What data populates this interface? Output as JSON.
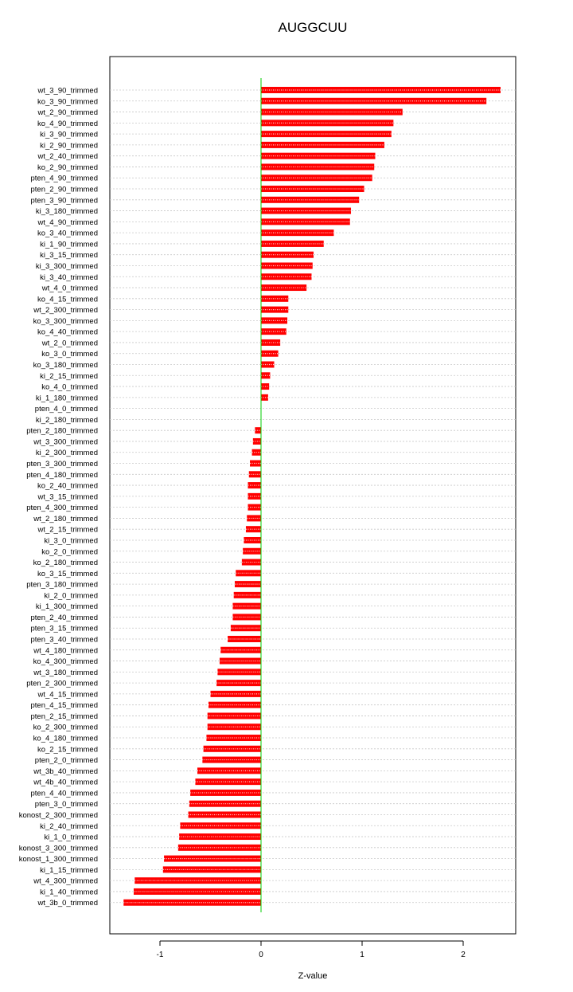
{
  "chart_data": {
    "type": "bar",
    "orientation": "horizontal",
    "title": "AUGGCUU",
    "xlabel": "Z-value",
    "ylabel": "",
    "xlim": [
      -1.5,
      2.5
    ],
    "xticks": [
      -1,
      0,
      1,
      2
    ],
    "grid": "horizontal dotted",
    "legend": "none",
    "bar_color": "#ff0000",
    "zero_line_color": "#00cc00",
    "categories": [
      "wt_3_90_trimmed",
      "ko_3_90_trimmed",
      "wt_2_90_trimmed",
      "ko_4_90_trimmed",
      "ki_3_90_trimmed",
      "ki_2_90_trimmed",
      "wt_2_40_trimmed",
      "ko_2_90_trimmed",
      "pten_4_90_trimmed",
      "pten_2_90_trimmed",
      "pten_3_90_trimmed",
      "ki_3_180_trimmed",
      "wt_4_90_trimmed",
      "ko_3_40_trimmed",
      "ki_1_90_trimmed",
      "ki_3_15_trimmed",
      "ki_3_300_trimmed",
      "ki_3_40_trimmed",
      "wt_4_0_trimmed",
      "ko_4_15_trimmed",
      "wt_2_300_trimmed",
      "ko_3_300_trimmed",
      "ko_4_40_trimmed",
      "wt_2_0_trimmed",
      "ko_3_0_trimmed",
      "ko_3_180_trimmed",
      "ki_2_15_trimmed",
      "ko_4_0_trimmed",
      "ki_1_180_trimmed",
      "pten_4_0_trimmed",
      "ki_2_180_trimmed",
      "pten_2_180_trimmed",
      "wt_3_300_trimmed",
      "ki_2_300_trimmed",
      "pten_3_300_trimmed",
      "pten_4_180_trimmed",
      "ko_2_40_trimmed",
      "wt_3_15_trimmed",
      "pten_4_300_trimmed",
      "wt_2_180_trimmed",
      "wt_2_15_trimmed",
      "ki_3_0_trimmed",
      "ko_2_0_trimmed",
      "ko_2_180_trimmed",
      "ko_3_15_trimmed",
      "pten_3_180_trimmed",
      "ki_2_0_trimmed",
      "ki_1_300_trimmed",
      "pten_2_40_trimmed",
      "pten_3_15_trimmed",
      "pten_3_40_trimmed",
      "wt_4_180_trimmed",
      "ko_4_300_trimmed",
      "wt_3_180_trimmed",
      "pten_2_300_trimmed",
      "wt_4_15_trimmed",
      "pten_4_15_trimmed",
      "pten_2_15_trimmed",
      "ko_2_300_trimmed",
      "ko_4_180_trimmed",
      "ko_2_15_trimmed",
      "pten_2_0_trimmed",
      "wt_3b_40_trimmed",
      "wt_4b_40_trimmed",
      "pten_4_40_trimmed",
      "pten_3_0_trimmed",
      "konost_2_300_trimmed",
      "ki_2_40_trimmed",
      "ki_1_0_trimmed",
      "konost_3_300_trimmed",
      "konost_1_300_trimmed",
      "ki_1_15_trimmed",
      "wt_4_300_trimmed",
      "ki_1_40_trimmed",
      "wt_3b_0_trimmed"
    ],
    "values": [
      2.37,
      2.23,
      1.4,
      1.31,
      1.29,
      1.22,
      1.13,
      1.12,
      1.1,
      1.02,
      0.97,
      0.89,
      0.88,
      0.72,
      0.62,
      0.52,
      0.51,
      0.5,
      0.45,
      0.27,
      0.27,
      0.26,
      0.25,
      0.19,
      0.17,
      0.13,
      0.09,
      0.08,
      0.07,
      0.0,
      0.0,
      -0.06,
      -0.08,
      -0.09,
      -0.11,
      -0.12,
      -0.13,
      -0.13,
      -0.13,
      -0.14,
      -0.15,
      -0.17,
      -0.18,
      -0.19,
      -0.25,
      -0.26,
      -0.27,
      -0.28,
      -0.28,
      -0.3,
      -0.33,
      -0.4,
      -0.41,
      -0.43,
      -0.44,
      -0.5,
      -0.52,
      -0.53,
      -0.53,
      -0.54,
      -0.57,
      -0.58,
      -0.63,
      -0.65,
      -0.7,
      -0.71,
      -0.72,
      -0.8,
      -0.81,
      -0.82,
      -0.96,
      -0.97,
      -1.25,
      -1.26,
      -1.36
    ]
  }
}
